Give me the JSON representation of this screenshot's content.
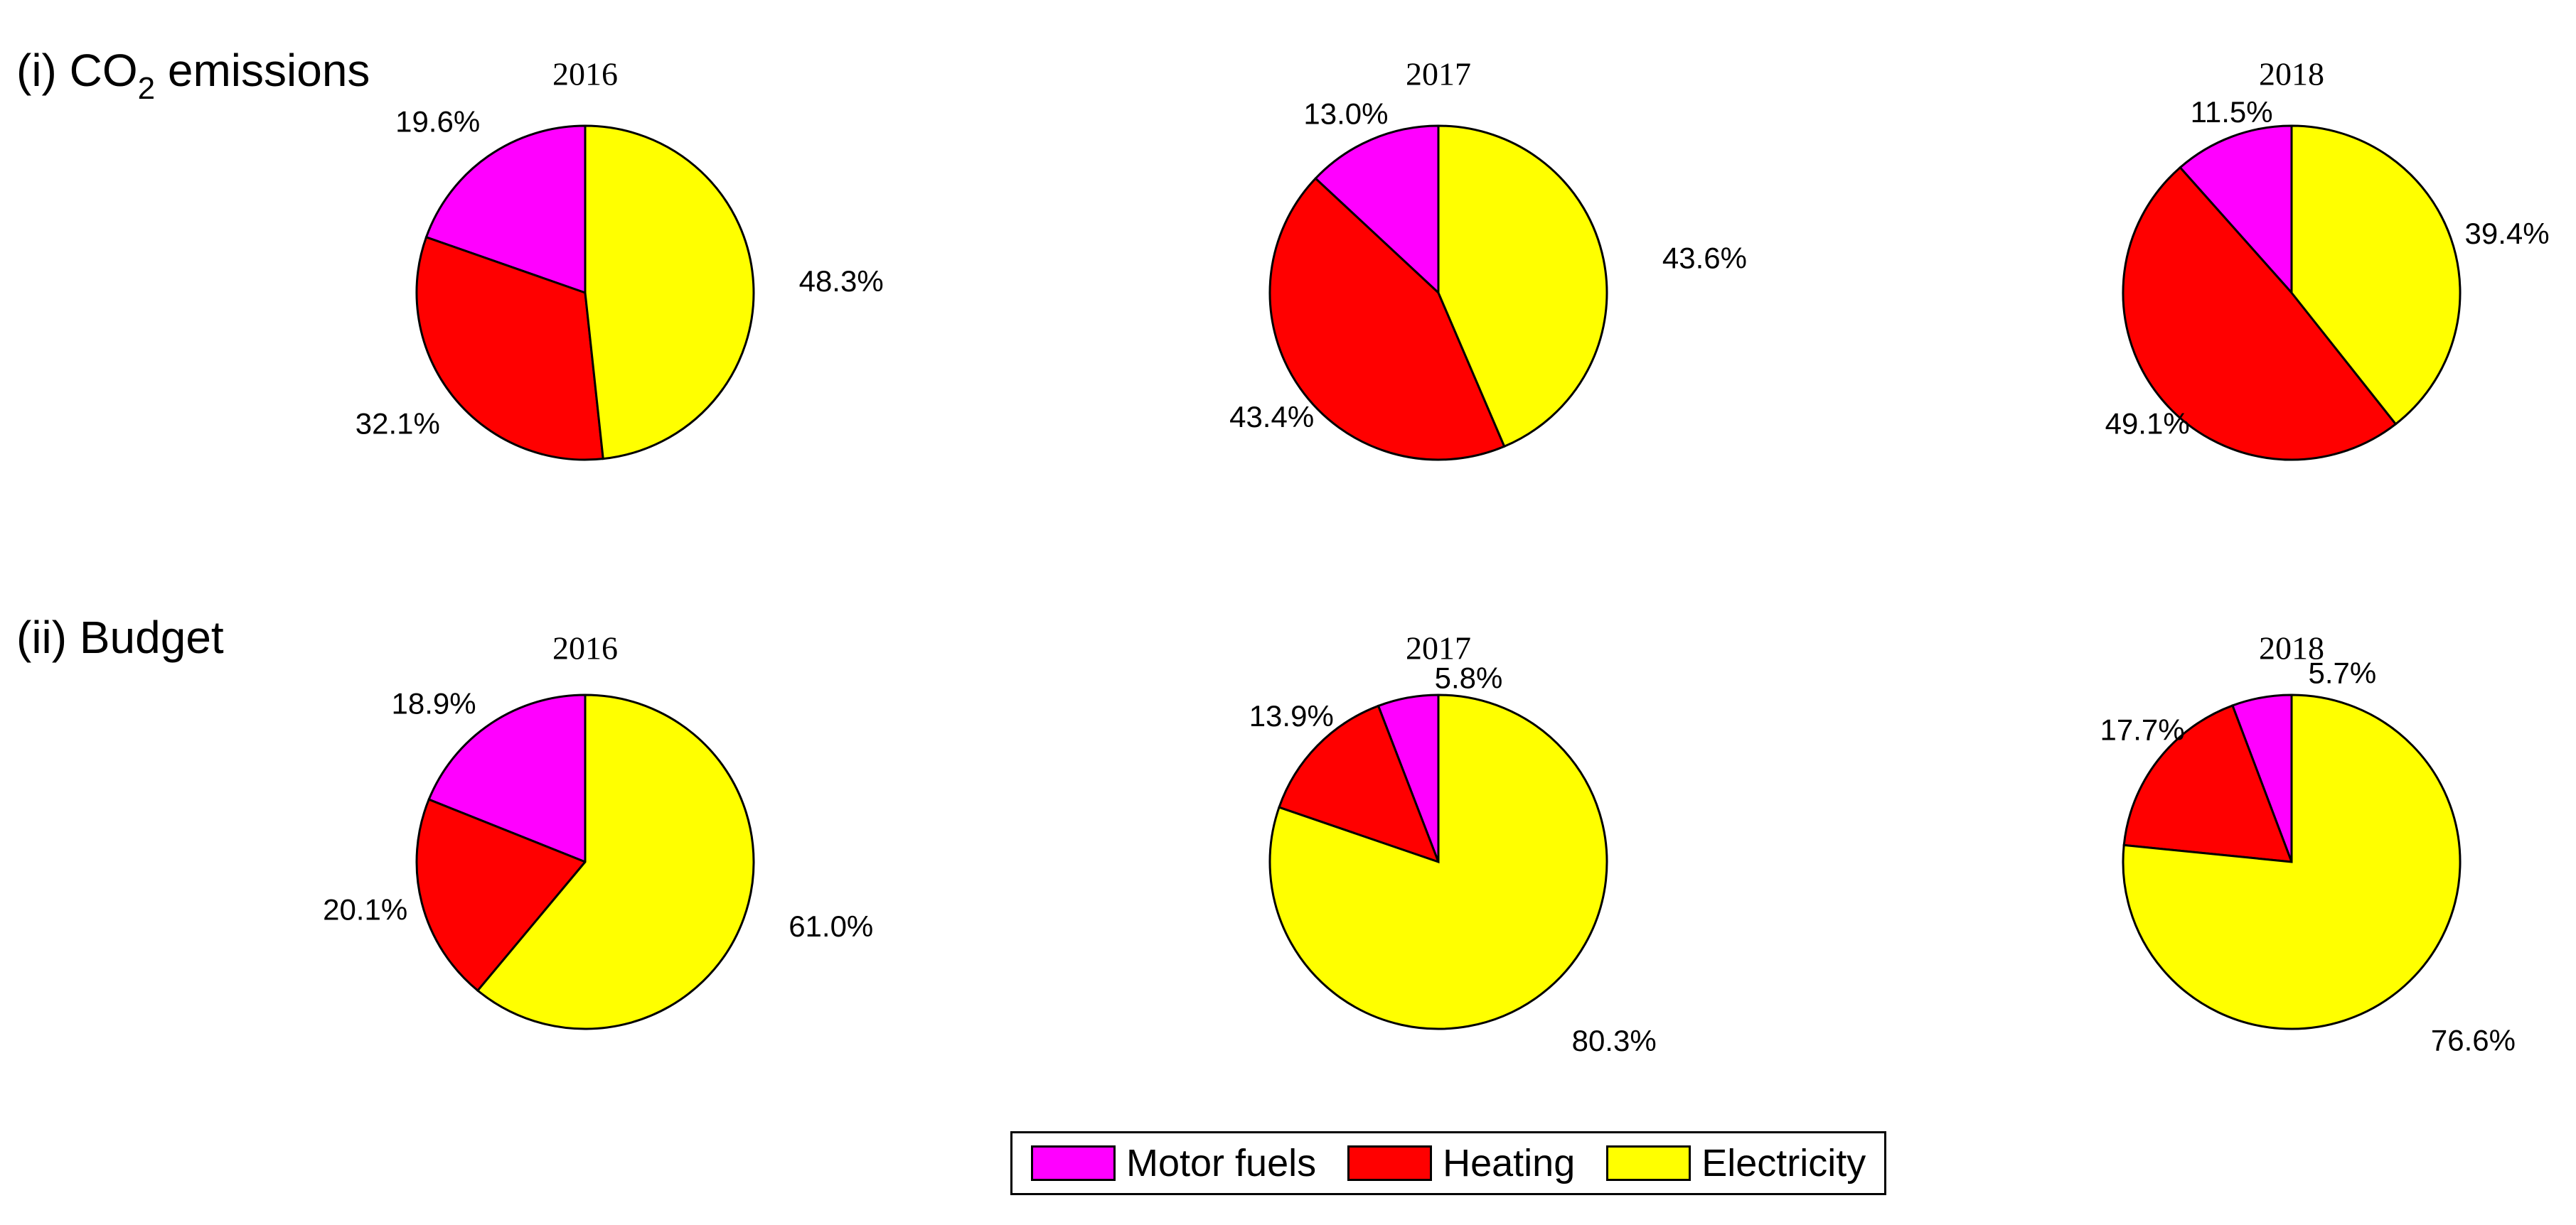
{
  "panels": {
    "co2": {
      "prefix": "(i) CO",
      "sub": "2",
      "suffix": " emissions"
    },
    "budget": {
      "title": "(ii) Budget"
    }
  },
  "legend": {
    "items": [
      {
        "label": "Motor fuels",
        "color": "#FF00FF"
      },
      {
        "label": "Heating",
        "color": "#FF0000"
      },
      {
        "label": "Electricity",
        "color": "#FFFF00"
      }
    ],
    "border_color": "#000000",
    "position": "bottom-center"
  },
  "colors": {
    "motor_fuels": "#FF00FF",
    "heating": "#FF0000",
    "electricity": "#FFFF00",
    "outline": "#000000",
    "background": "#FFFFFF"
  },
  "chart_data": [
    {
      "type": "pie",
      "panel": "(i) CO2 emissions",
      "year": "2016",
      "direction": "counterclockwise",
      "start_angle_deg": 90,
      "slices": [
        {
          "label": "Motor fuels",
          "value": 19.6,
          "display": "19.6%"
        },
        {
          "label": "Heating",
          "value": 32.1,
          "display": "32.1%"
        },
        {
          "label": "Electricity",
          "value": 48.3,
          "display": "48.3%"
        }
      ]
    },
    {
      "type": "pie",
      "panel": "(i) CO2 emissions",
      "year": "2017",
      "direction": "counterclockwise",
      "start_angle_deg": 90,
      "slices": [
        {
          "label": "Motor fuels",
          "value": 13.0,
          "display": "13.0%"
        },
        {
          "label": "Heating",
          "value": 43.4,
          "display": "43.4%"
        },
        {
          "label": "Electricity",
          "value": 43.6,
          "display": "43.6%"
        }
      ]
    },
    {
      "type": "pie",
      "panel": "(i) CO2 emissions",
      "year": "2018",
      "direction": "counterclockwise",
      "start_angle_deg": 90,
      "slices": [
        {
          "label": "Motor fuels",
          "value": 11.5,
          "display": "11.5%"
        },
        {
          "label": "Heating",
          "value": 49.1,
          "display": "49.1%"
        },
        {
          "label": "Electricity",
          "value": 39.4,
          "display": "39.4%"
        }
      ]
    },
    {
      "type": "pie",
      "panel": "(ii) Budget",
      "year": "2016",
      "direction": "counterclockwise",
      "start_angle_deg": 90,
      "slices": [
        {
          "label": "Motor fuels",
          "value": 18.9,
          "display": "18.9%"
        },
        {
          "label": "Heating",
          "value": 20.1,
          "display": "20.1%"
        },
        {
          "label": "Electricity",
          "value": 61.0,
          "display": "61.0%"
        }
      ]
    },
    {
      "type": "pie",
      "panel": "(ii) Budget",
      "year": "2017",
      "direction": "counterclockwise",
      "start_angle_deg": 90,
      "slices": [
        {
          "label": "Motor fuels",
          "value": 5.8,
          "display": "5.8%"
        },
        {
          "label": "Heating",
          "value": 13.9,
          "display": "13.9%"
        },
        {
          "label": "Electricity",
          "value": 80.3,
          "display": "80.3%"
        }
      ]
    },
    {
      "type": "pie",
      "panel": "(ii) Budget",
      "year": "2018",
      "direction": "counterclockwise",
      "start_angle_deg": 90,
      "slices": [
        {
          "label": "Motor fuels",
          "value": 5.7,
          "display": "5.7%"
        },
        {
          "label": "Heating",
          "value": 17.7,
          "display": "17.7%"
        },
        {
          "label": "Electricity",
          "value": 76.6,
          "display": "76.6%"
        }
      ]
    }
  ]
}
